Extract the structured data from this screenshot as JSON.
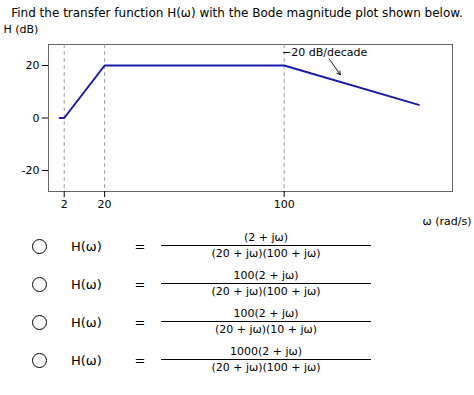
{
  "chart_data": {
    "type": "line",
    "title": "Find the transfer function H(ω) with the Bode magnitude plot shown below.",
    "x_label": "ω (rad/s)",
    "y_label": "H (dB)",
    "x": [
      0,
      2,
      20,
      100,
      160
    ],
    "values": [
      0,
      0,
      20,
      20,
      5
    ],
    "color": "#1a1aaa",
    "xlim": [
      -5,
      175
    ],
    "ylim": [
      -28,
      28
    ],
    "xticks": [
      2,
      20,
      100
    ],
    "yticks": [
      -20,
      0,
      20
    ],
    "reference_lines": {
      "x": [
        2,
        20,
        100
      ],
      "color": "#888888",
      "line_style": "dashed"
    },
    "annotations": [
      {
        "text": "−20 dB/decade",
        "x": 118,
        "y": 25,
        "arrow_x": 125,
        "arrow_y": 16.5
      }
    ],
    "options": [
      {
        "lhs": "H(ω)",
        "relation": "=",
        "numerator": "(2 + jω)",
        "denominator": "(20 + jω)(100 + jω)"
      },
      {
        "lhs": "H(ω)",
        "relation": "=",
        "numerator": "100(2 + jω)",
        "denominator": "(20 + jω)(100 + jω)"
      },
      {
        "lhs": "H(ω)",
        "relation": "=",
        "numerator": "100(2 + jω)",
        "denominator": "(20 + jω)(10 + jω)"
      },
      {
        "lhs": "H(ω)",
        "relation": "=",
        "numerator": "1000(2 + jω)",
        "denominator": "(20 + jω)(100 + jω)"
      }
    ]
  }
}
